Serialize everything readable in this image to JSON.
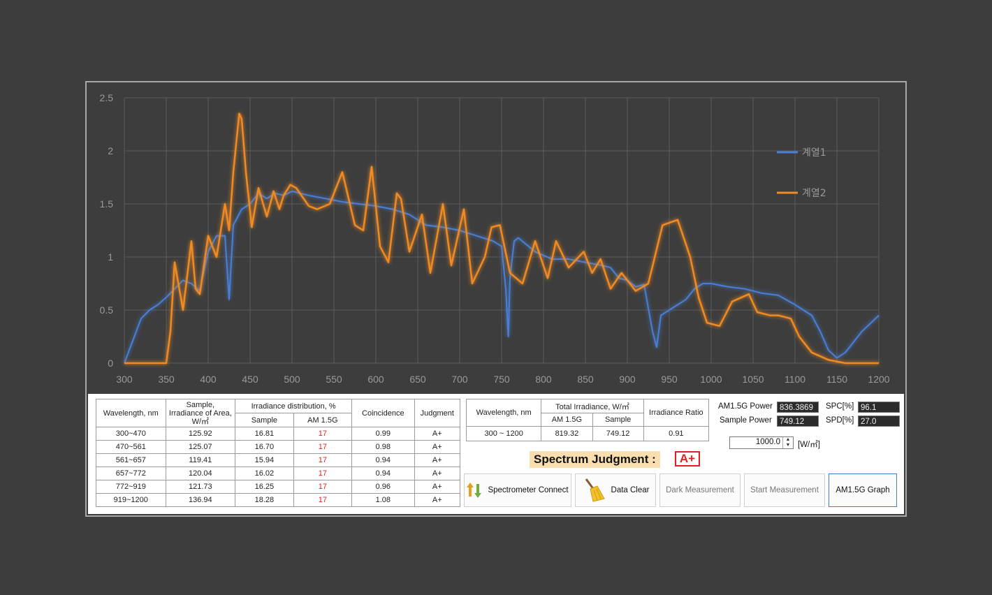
{
  "chart_data": {
    "type": "line",
    "xlim": [
      300,
      1200
    ],
    "ylim": [
      0,
      2.5
    ],
    "x_ticks": [
      "300",
      "350",
      "400",
      "450",
      "500",
      "550",
      "600",
      "650",
      "700",
      "750",
      "800",
      "850",
      "900",
      "950",
      "1000",
      "1050",
      "1100",
      "1150",
      "1200"
    ],
    "y_ticks": [
      "0",
      "0.5",
      "1",
      "1.5",
      "2",
      "2.5"
    ],
    "grid": true,
    "legend_position": "right",
    "series": [
      {
        "name": "계열1",
        "color": "#4a7fd6",
        "x": [
          300,
          320,
          330,
          340,
          350,
          360,
          370,
          380,
          390,
          400,
          410,
          420,
          425,
          430,
          440,
          450,
          460,
          470,
          480,
          490,
          500,
          520,
          540,
          560,
          580,
          600,
          620,
          640,
          650,
          660,
          680,
          700,
          720,
          740,
          750,
          755,
          758,
          760,
          765,
          770,
          790,
          810,
          830,
          850,
          870,
          880,
          890,
          900,
          910,
          920,
          930,
          935,
          940,
          950,
          960,
          970,
          980,
          990,
          1000,
          1020,
          1040,
          1060,
          1080,
          1100,
          1120,
          1130,
          1140,
          1150,
          1160,
          1170,
          1180,
          1200
        ],
        "y": [
          0,
          0.42,
          0.5,
          0.55,
          0.62,
          0.7,
          0.78,
          0.75,
          0.68,
          1.05,
          1.2,
          1.2,
          0.6,
          1.3,
          1.45,
          1.5,
          1.6,
          1.55,
          1.6,
          1.58,
          1.62,
          1.58,
          1.55,
          1.52,
          1.5,
          1.48,
          1.45,
          1.4,
          1.35,
          1.3,
          1.28,
          1.25,
          1.2,
          1.15,
          1.1,
          0.7,
          0.25,
          0.8,
          1.15,
          1.18,
          1.05,
          0.98,
          0.98,
          0.95,
          0.92,
          0.9,
          0.8,
          0.78,
          0.72,
          0.74,
          0.3,
          0.15,
          0.45,
          0.5,
          0.55,
          0.6,
          0.7,
          0.75,
          0.75,
          0.72,
          0.7,
          0.66,
          0.64,
          0.55,
          0.45,
          0.3,
          0.12,
          0.05,
          0.1,
          0.2,
          0.3,
          0.45
        ]
      },
      {
        "name": "계열2",
        "color": "#f08a24",
        "x": [
          300,
          340,
          350,
          355,
          360,
          370,
          380,
          385,
          390,
          400,
          410,
          420,
          425,
          430,
          437,
          440,
          445,
          452,
          460,
          470,
          478,
          485,
          490,
          498,
          505,
          520,
          530,
          545,
          560,
          575,
          585,
          595,
          605,
          615,
          625,
          630,
          640,
          655,
          665,
          680,
          690,
          705,
          715,
          730,
          738,
          748,
          760,
          775,
          790,
          805,
          815,
          830,
          848,
          858,
          868,
          880,
          893,
          900,
          910,
          925,
          942,
          960,
          975,
          985,
          995,
          1010,
          1025,
          1045,
          1055,
          1070,
          1080,
          1095,
          1105,
          1120,
          1140,
          1160,
          1180,
          1200
        ],
        "y": [
          0,
          0,
          0,
          0.3,
          0.95,
          0.5,
          1.15,
          0.7,
          0.65,
          1.2,
          1.0,
          1.5,
          1.25,
          1.8,
          2.35,
          2.3,
          1.8,
          1.28,
          1.65,
          1.38,
          1.62,
          1.45,
          1.58,
          1.68,
          1.65,
          1.48,
          1.45,
          1.5,
          1.8,
          1.3,
          1.25,
          1.85,
          1.1,
          0.95,
          1.6,
          1.55,
          1.05,
          1.4,
          0.85,
          1.5,
          0.92,
          1.45,
          0.75,
          1.0,
          1.28,
          1.3,
          0.85,
          0.75,
          1.15,
          0.8,
          1.15,
          0.9,
          1.05,
          0.85,
          0.98,
          0.7,
          0.85,
          0.78,
          0.68,
          0.75,
          1.3,
          1.35,
          1.0,
          0.62,
          0.38,
          0.35,
          0.58,
          0.65,
          0.48,
          0.45,
          0.45,
          0.42,
          0.25,
          0.1,
          0.03,
          0,
          0,
          0
        ]
      }
    ]
  },
  "distribution_table": {
    "headers": {
      "wavelength": "Wavelength, nm",
      "sample_irr": [
        "Sample,",
        "Irradiance of Area,",
        "W/㎡"
      ],
      "irr_dist": "Irradiance distribution, %",
      "sample": "Sample",
      "am15g": "AM 1.5G",
      "coincidence": "Coincidence",
      "judgment": "Judgment"
    },
    "rows": [
      {
        "range": "300~470",
        "irr": "125.92",
        "sample": "16.81",
        "am": "17",
        "coin": "0.99",
        "judge": "A+"
      },
      {
        "range": "470~561",
        "irr": "125.07",
        "sample": "16.70",
        "am": "17",
        "coin": "0.98",
        "judge": "A+"
      },
      {
        "range": "561~657",
        "irr": "119.41",
        "sample": "15.94",
        "am": "17",
        "coin": "0.94",
        "judge": "A+"
      },
      {
        "range": "657~772",
        "irr": "120.04",
        "sample": "16.02",
        "am": "17",
        "coin": "0.94",
        "judge": "A+"
      },
      {
        "range": "772~919",
        "irr": "121.73",
        "sample": "16.25",
        "am": "17",
        "coin": "0.96",
        "judge": "A+"
      },
      {
        "range": "919~1200",
        "irr": "136.94",
        "sample": "18.28",
        "am": "17",
        "coin": "1.08",
        "judge": "A+"
      }
    ]
  },
  "total_table": {
    "wavelength_header": "Wavelength, nm",
    "total_header": "Total Irradiance, W/㎡",
    "am15g_header": "AM 1.5G",
    "sample_header": "Sample",
    "ratio_header": "Irradiance Ratio",
    "range": "300 ~ 1200",
    "am15g": "819.32",
    "sample": "749.12",
    "ratio": "0.91"
  },
  "metrics": {
    "am_power_label": "AM1.5G Power",
    "am_power": "836.3869",
    "sample_power_label": "Sample Power",
    "sample_power": "749.12",
    "spc_label": "SPC[%]",
    "spc": "96.1",
    "spd_label": "SPD[%]",
    "spd": "27.0",
    "power_setting": "1000.0",
    "power_unit": "[W/㎡]"
  },
  "judgment": {
    "label": "Spectrum Judgment :",
    "value": "A+"
  },
  "buttons": {
    "connect": "Spectrometer Connect",
    "clear": "Data Clear",
    "dark": "Dark Measurement",
    "start": "Start Measurement",
    "graph": "AM1.5G Graph"
  }
}
